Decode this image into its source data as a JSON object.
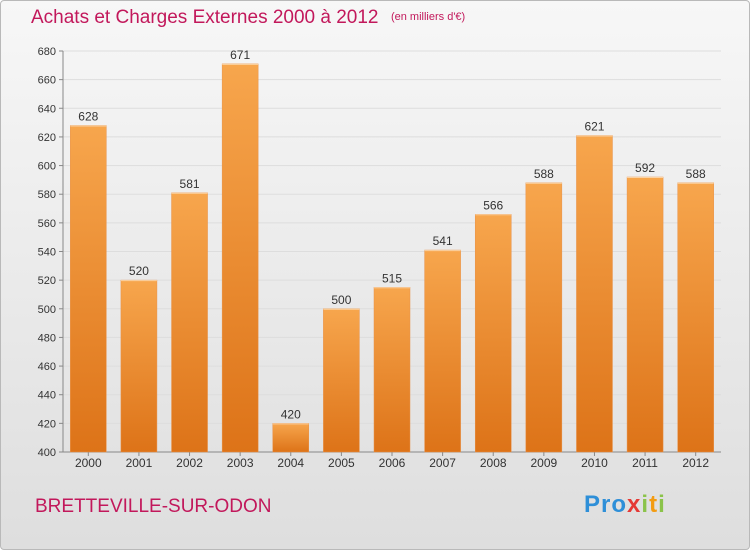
{
  "header": {
    "title": "Achats et Charges Externes 2000 à 2012",
    "subtitle": "(en milliers d'€)"
  },
  "footer": {
    "commune": "BRETTEVILLE-SUR-ODON",
    "logo_text": "Proxiti",
    "logo_letters": [
      {
        "char": "P",
        "color": "#2e8fd8"
      },
      {
        "char": "r",
        "color": "#2e8fd8"
      },
      {
        "char": "o",
        "color": "#2e8fd8"
      },
      {
        "char": "x",
        "color": "#e53935"
      },
      {
        "char": "i",
        "color": "#8bc34a"
      },
      {
        "char": "t",
        "color": "#f39c12"
      },
      {
        "char": "i",
        "color": "#8bc34a"
      }
    ]
  },
  "colors": {
    "bar_top": "#f7a64d",
    "bar_bottom": "#dd7318",
    "title": "#c2185b",
    "grid": "#dddddd"
  },
  "chart_data": {
    "type": "bar",
    "categories": [
      "2000",
      "2001",
      "2002",
      "2003",
      "2004",
      "2005",
      "2006",
      "2007",
      "2008",
      "2009",
      "2010",
      "2011",
      "2012"
    ],
    "values": [
      628,
      520,
      581,
      671,
      420,
      500,
      515,
      541,
      566,
      588,
      621,
      592,
      588
    ],
    "ylim": [
      400,
      680
    ],
    "yticks": [
      400,
      420,
      440,
      460,
      480,
      500,
      520,
      540,
      560,
      580,
      600,
      620,
      640,
      660,
      680
    ],
    "grid": true
  }
}
